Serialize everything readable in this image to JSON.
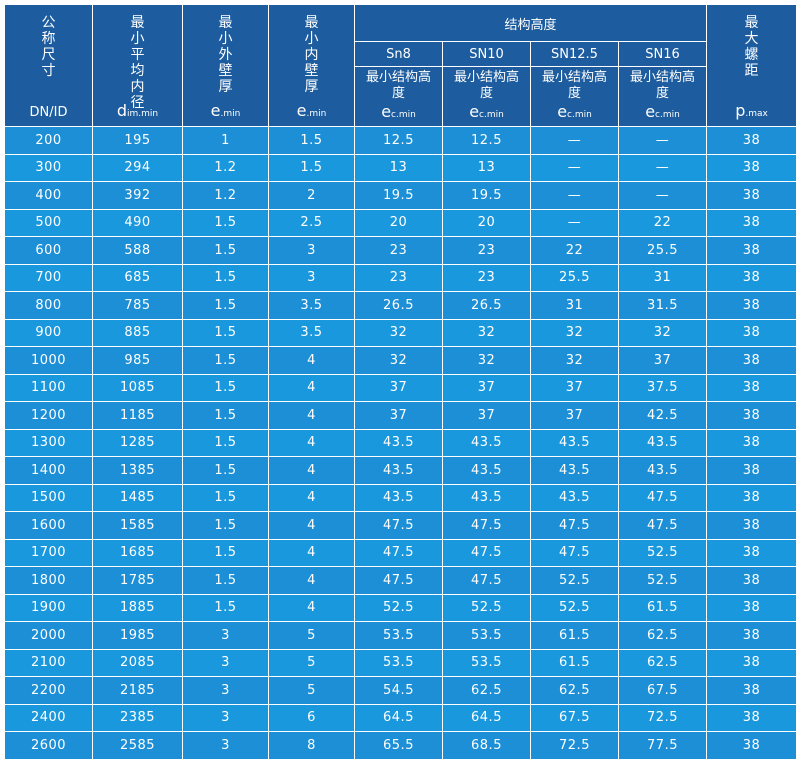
{
  "header": {
    "dn": {
      "label": "公称尺寸",
      "symbol": "DN/ID"
    },
    "di": {
      "label": "最小平均内径",
      "symbol_main": "d",
      "symbol_sub": "im.min"
    },
    "e4": {
      "label": "最小外壁厚",
      "symbol_main": "e",
      "symbol_sub": ".min"
    },
    "e5": {
      "label": "最小内壁厚",
      "symbol_main": "e",
      "symbol_sub": ".min"
    },
    "group": "结构高度",
    "sn": [
      {
        "name": "Sn8",
        "label": "最小结构高度",
        "symbol_main": "e",
        "symbol_sub": "c.min"
      },
      {
        "name": "SN10",
        "label": "最小结构高度",
        "symbol_main": "e",
        "symbol_sub": "c.min"
      },
      {
        "name": "SN12.5",
        "label": "最小结构高度",
        "symbol_main": "e",
        "symbol_sub": "c.min"
      },
      {
        "name": "SN16",
        "label": "最小结构高度",
        "symbol_main": "e",
        "symbol_sub": "c.min"
      }
    ],
    "pitch": {
      "label": "最大螺距",
      "symbol_main": "p",
      "symbol_sub": ".max"
    }
  },
  "rows": [
    [
      "200",
      "195",
      "1",
      "1.5",
      "12.5",
      "12.5",
      "—",
      "—",
      "38"
    ],
    [
      "300",
      "294",
      "1.2",
      "1.5",
      "13",
      "13",
      "—",
      "—",
      "38"
    ],
    [
      "400",
      "392",
      "1.2",
      "2",
      "19.5",
      "19.5",
      "—",
      "—",
      "38"
    ],
    [
      "500",
      "490",
      "1.5",
      "2.5",
      "20",
      "20",
      "—",
      "22",
      "38"
    ],
    [
      "600",
      "588",
      "1.5",
      "3",
      "23",
      "23",
      "22",
      "25.5",
      "38"
    ],
    [
      "700",
      "685",
      "1.5",
      "3",
      "23",
      "23",
      "25.5",
      "31",
      "38"
    ],
    [
      "800",
      "785",
      "1.5",
      "3.5",
      "26.5",
      "26.5",
      "31",
      "31.5",
      "38"
    ],
    [
      "900",
      "885",
      "1.5",
      "3.5",
      "32",
      "32",
      "32",
      "32",
      "38"
    ],
    [
      "1000",
      "985",
      "1.5",
      "4",
      "32",
      "32",
      "32",
      "37",
      "38"
    ],
    [
      "1100",
      "1085",
      "1.5",
      "4",
      "37",
      "37",
      "37",
      "37.5",
      "38"
    ],
    [
      "1200",
      "1185",
      "1.5",
      "4",
      "37",
      "37",
      "37",
      "42.5",
      "38"
    ],
    [
      "1300",
      "1285",
      "1.5",
      "4",
      "43.5",
      "43.5",
      "43.5",
      "43.5",
      "38"
    ],
    [
      "1400",
      "1385",
      "1.5",
      "4",
      "43.5",
      "43.5",
      "43.5",
      "43.5",
      "38"
    ],
    [
      "1500",
      "1485",
      "1.5",
      "4",
      "43.5",
      "43.5",
      "43.5",
      "47.5",
      "38"
    ],
    [
      "1600",
      "1585",
      "1.5",
      "4",
      "47.5",
      "47.5",
      "47.5",
      "47.5",
      "38"
    ],
    [
      "1700",
      "1685",
      "1.5",
      "4",
      "47.5",
      "47.5",
      "47.5",
      "52.5",
      "38"
    ],
    [
      "1800",
      "1785",
      "1.5",
      "4",
      "47.5",
      "47.5",
      "52.5",
      "52.5",
      "38"
    ],
    [
      "1900",
      "1885",
      "1.5",
      "4",
      "52.5",
      "52.5",
      "52.5",
      "61.5",
      "38"
    ],
    [
      "2000",
      "1985",
      "3",
      "5",
      "53.5",
      "53.5",
      "61.5",
      "62.5",
      "38"
    ],
    [
      "2100",
      "2085",
      "3",
      "5",
      "53.5",
      "53.5",
      "61.5",
      "62.5",
      "38"
    ],
    [
      "2200",
      "2185",
      "3",
      "5",
      "54.5",
      "62.5",
      "62.5",
      "67.5",
      "38"
    ],
    [
      "2400",
      "2385",
      "3",
      "6",
      "64.5",
      "64.5",
      "67.5",
      "72.5",
      "38"
    ],
    [
      "2600",
      "2585",
      "3",
      "8",
      "65.5",
      "68.5",
      "72.5",
      "77.5",
      "38"
    ]
  ],
  "colors": {
    "header_bg": "#1c5c9f",
    "row_bg_a": "#1c8fd6",
    "row_bg_b": "#1a98de",
    "grid_line": "#ffffff"
  }
}
